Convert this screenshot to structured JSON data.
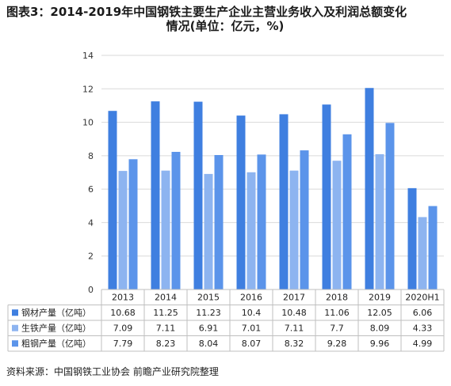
{
  "title": {
    "line1": "图表3：2014-2019年中国钢铁主要生产企业主营业务收入及利润总额变化",
    "line2": "情况(单位：亿元，%)"
  },
  "source": "资料来源：中国钢铁工业协会 前瞻产业研究院整理",
  "colors": {
    "series": [
      "#3f7fe0",
      "#8db4f0",
      "#5b94ea"
    ],
    "gridline": "#d9d9d9",
    "axis": "#bfbfbf"
  },
  "chart_data": {
    "type": "bar",
    "categories": [
      "2013",
      "2014",
      "2015",
      "2016",
      "2017",
      "2018",
      "2019",
      "2020H1"
    ],
    "series": [
      {
        "name": "钢材产量（亿吨）",
        "values": [
          10.68,
          11.25,
          11.23,
          10.4,
          10.48,
          11.06,
          12.05,
          6.06
        ]
      },
      {
        "name": "生铁产量（亿吨）",
        "values": [
          7.09,
          7.11,
          6.91,
          7.01,
          7.11,
          7.7,
          8.09,
          4.33
        ]
      },
      {
        "name": "粗钢产量（亿吨）",
        "values": [
          7.79,
          8.23,
          8.04,
          8.07,
          8.32,
          9.28,
          9.96,
          4.99
        ]
      }
    ],
    "ylim": [
      0,
      14
    ],
    "yticks": [
      "0",
      "2",
      "4",
      "6",
      "8",
      "10",
      "12",
      "14"
    ],
    "grid": true,
    "legend": "data-table"
  }
}
